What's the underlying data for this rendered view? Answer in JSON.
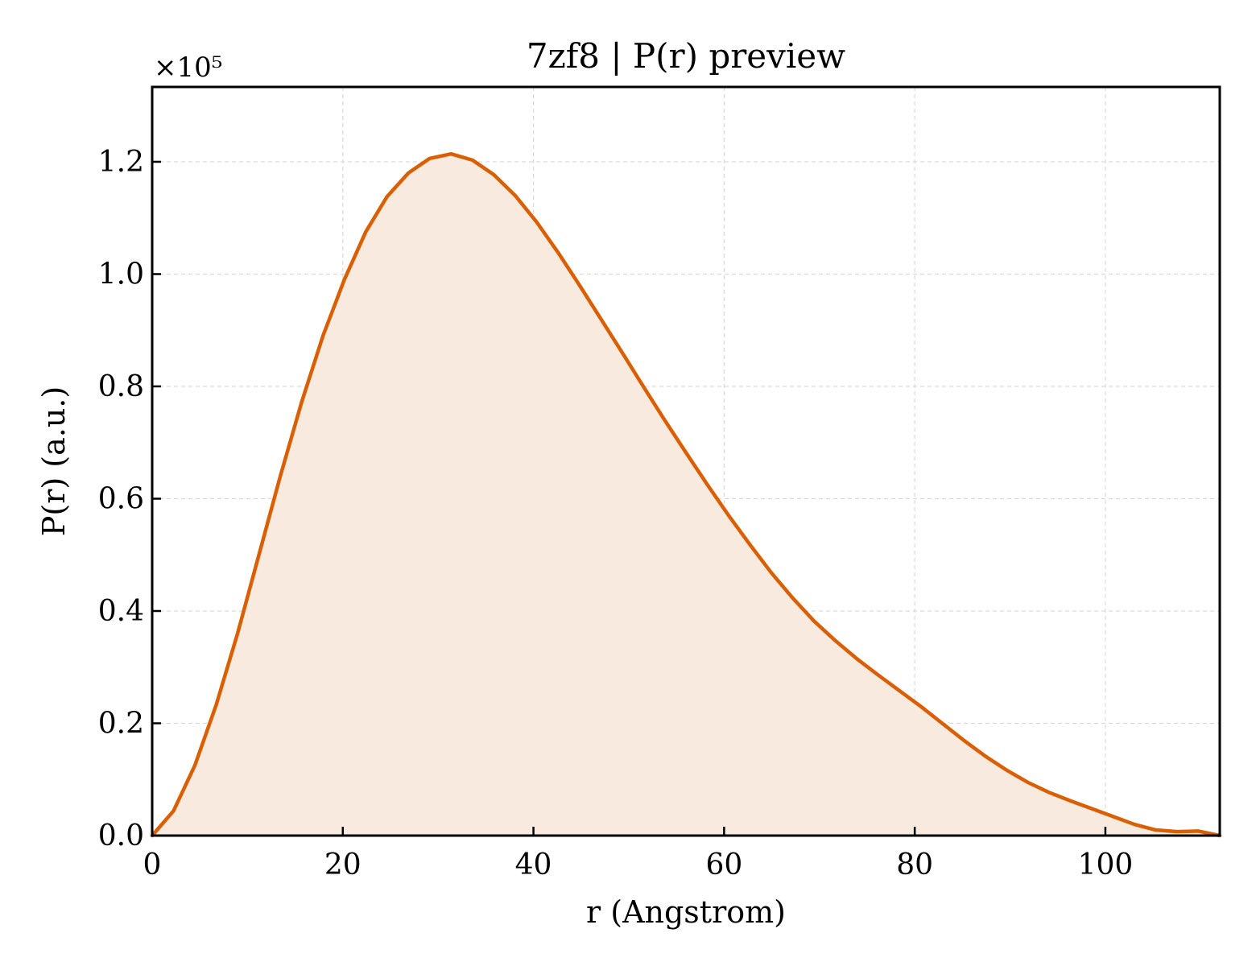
{
  "chart_data": {
    "type": "area",
    "title": "7zf8 | P(r) preview",
    "xlabel": "r (Angstrom)",
    "ylabel": "P(r) (a.u.)",
    "y_multiplier": "×10⁵",
    "xlim": [
      0,
      112
    ],
    "ylim": [
      0,
      1.3333
    ],
    "y_scale": 100000,
    "x_ticks": [
      0,
      20,
      40,
      60,
      80,
      100
    ],
    "x_tick_labels": [
      "0",
      "20",
      "40",
      "60",
      "80",
      "100"
    ],
    "y_ticks": [
      0,
      0.2,
      0.4,
      0.6,
      0.8,
      1.0,
      1.2
    ],
    "y_tick_labels": [
      "0.0",
      "0.2",
      "0.4",
      "0.6",
      "0.8",
      "1.0",
      "1.2"
    ],
    "grid": true,
    "line_color": "#d95f02",
    "fill_color": "#f9eadf",
    "series": [
      {
        "x": [
          0,
          2.24,
          4.48,
          6.72,
          8.96,
          11.2,
          13.44,
          15.68,
          17.92,
          20.16,
          22.4,
          24.64,
          26.88,
          29.12,
          31.36,
          33.6,
          35.84,
          38.08,
          40.32,
          42.56,
          44.8,
          47.04,
          49.28,
          51.52,
          53.76,
          56.0,
          58.24,
          60.48,
          62.72,
          64.96,
          67.2,
          69.44,
          71.68,
          73.92,
          76.16,
          78.4,
          80.64,
          82.88,
          85.12,
          87.36,
          89.6,
          91.84,
          94.08,
          96.32,
          98.56,
          100.8,
          103.04,
          105.28,
          107.52,
          109.76,
          112.0
        ],
        "values": [
          0.0,
          0.044,
          0.125,
          0.233,
          0.36,
          0.5,
          0.64,
          0.772,
          0.89,
          0.99,
          1.075,
          1.138,
          1.18,
          1.206,
          1.214,
          1.203,
          1.177,
          1.14,
          1.093,
          1.039,
          0.981,
          0.921,
          0.861,
          0.8,
          0.74,
          0.682,
          0.625,
          0.57,
          0.518,
          0.468,
          0.423,
          0.382,
          0.347,
          0.315,
          0.286,
          0.258,
          0.23,
          0.2,
          0.17,
          0.142,
          0.117,
          0.095,
          0.077,
          0.062,
          0.048,
          0.034,
          0.02,
          0.01,
          0.007,
          0.008,
          0.0
        ]
      }
    ]
  }
}
